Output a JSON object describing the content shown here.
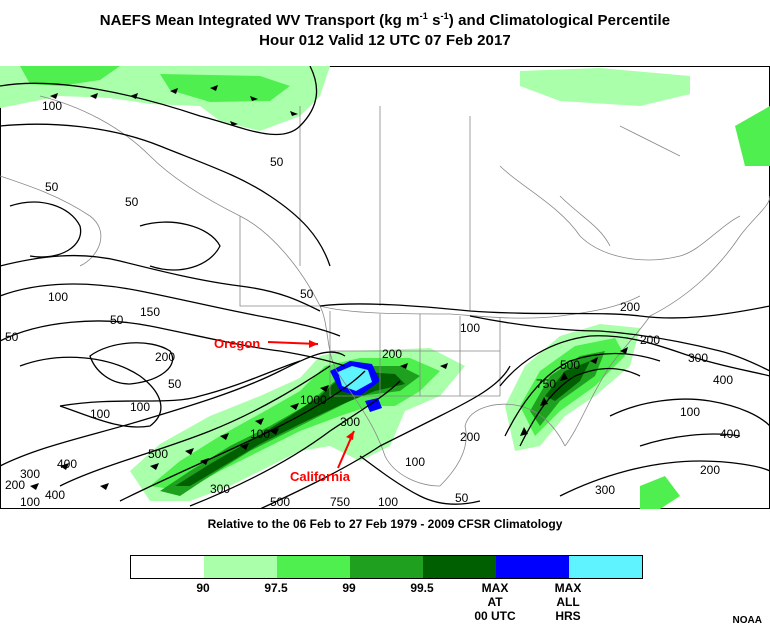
{
  "title": {
    "prefix": "NAEFS Mean Integrated WV Transport (kg m",
    "exp1": "-1",
    "mid": " s",
    "exp2": "-1",
    "suffix": ") and Climatological Percentile",
    "line2": "Hour 012 Valid 12 UTC 07 Feb 2017"
  },
  "map_labels": {
    "oregon": "Oregon",
    "california": "California"
  },
  "contour_labels": [
    "100",
    "50",
    "50",
    "50",
    "50",
    "100",
    "200",
    "100",
    "50",
    "100",
    "50",
    "100",
    "200",
    "300",
    "400",
    "500",
    "750",
    "1000",
    "100",
    "400",
    "300",
    "500",
    "200",
    "200",
    "300",
    "400",
    "500",
    "750",
    "100",
    "300",
    "400",
    "200",
    "100",
    "100",
    "50",
    "200",
    "300",
    "100",
    "200",
    "50",
    "150"
  ],
  "subtitle": "Relative to the 06 Feb to 27 Feb 1979 - 2009 CFSR Climatology",
  "legend": {
    "colors": [
      "#ffffff",
      "#aaffaa",
      "#4fef4f",
      "#1fa11f",
      "#005f00",
      "#0000ff",
      "#5ff2ff"
    ],
    "labels": [
      "90",
      "97.5",
      "99",
      "99.5",
      "MAX\nAT\n00 UTC",
      "MAX\nALL\nHRS"
    ]
  },
  "credit": "NOAA"
}
